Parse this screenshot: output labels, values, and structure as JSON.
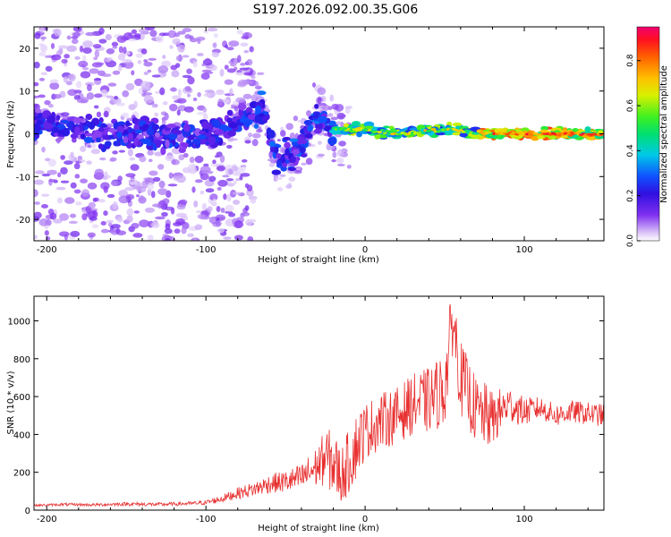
{
  "title": "S197.2026.092.00.35.G06",
  "chart_data": [
    {
      "type": "heatmap",
      "xlabel": "Height of straight line (km)",
      "ylabel": "Frequency (Hz)",
      "xlim": [
        -208,
        150
      ],
      "ylim": [
        -25,
        25
      ],
      "xticks": [
        -200,
        -100,
        0,
        100
      ],
      "yticks": [
        -20,
        -10,
        0,
        10,
        20
      ],
      "ridge_description": "Scattered energy below about -65 km, transition near -60 to -20 km, narrow bright band near 0 Hz above -20 km",
      "ridge_points": [
        {
          "x": -200,
          "y": 2
        },
        {
          "x": -180,
          "y": 1
        },
        {
          "x": -160,
          "y": 0
        },
        {
          "x": -140,
          "y": 0
        },
        {
          "x": -120,
          "y": -1
        },
        {
          "x": -100,
          "y": 0
        },
        {
          "x": -80,
          "y": 2
        },
        {
          "x": -65,
          "y": 6
        },
        {
          "x": -55,
          "y": -6
        },
        {
          "x": -40,
          "y": -3
        },
        {
          "x": -30,
          "y": 4
        },
        {
          "x": -20,
          "y": 1
        },
        {
          "x": 0,
          "y": 1
        },
        {
          "x": 20,
          "y": 0
        },
        {
          "x": 50,
          "y": 1
        },
        {
          "x": 80,
          "y": 0
        },
        {
          "x": 100,
          "y": 0
        },
        {
          "x": 150,
          "y": 0
        }
      ],
      "colorbar": {
        "label": "Normalized spectral amplitude",
        "range": [
          0,
          0.95
        ],
        "ticks": [
          0.0,
          0.2,
          0.4,
          0.6,
          0.8
        ]
      }
    },
    {
      "type": "line",
      "xlabel": "Height of straight line (km)",
      "ylabel": "SNR (10 * v/v)",
      "xlim": [
        -208,
        150
      ],
      "ylim": [
        0,
        1130
      ],
      "xticks": [
        -200,
        -100,
        0,
        100
      ],
      "yticks": [
        0,
        200,
        400,
        600,
        800,
        1000
      ],
      "series": [
        {
          "name": "SNR",
          "color": "#e83030",
          "x": [
            -208,
            -190,
            -170,
            -150,
            -130,
            -110,
            -100,
            -90,
            -80,
            -70,
            -60,
            -50,
            -40,
            -30,
            -25,
            -20,
            -15,
            -10,
            -5,
            0,
            10,
            20,
            30,
            40,
            50,
            55,
            60,
            70,
            75,
            80,
            90,
            100,
            110,
            120,
            130,
            140,
            150
          ],
          "y": [
            25,
            30,
            28,
            33,
            30,
            35,
            40,
            60,
            90,
            110,
            140,
            150,
            170,
            230,
            280,
            250,
            180,
            260,
            350,
            420,
            470,
            500,
            560,
            580,
            640,
            1020,
            700,
            520,
            500,
            480,
            560,
            520,
            540,
            500,
            520,
            510,
            500
          ],
          "spread": [
            10,
            15,
            15,
            20,
            20,
            20,
            25,
            40,
            60,
            80,
            100,
            120,
            150,
            220,
            300,
            350,
            300,
            350,
            350,
            300,
            300,
            300,
            320,
            350,
            400,
            400,
            400,
            350,
            350,
            300,
            200,
            150,
            120,
            120,
            120,
            120,
            120
          ]
        }
      ]
    }
  ]
}
